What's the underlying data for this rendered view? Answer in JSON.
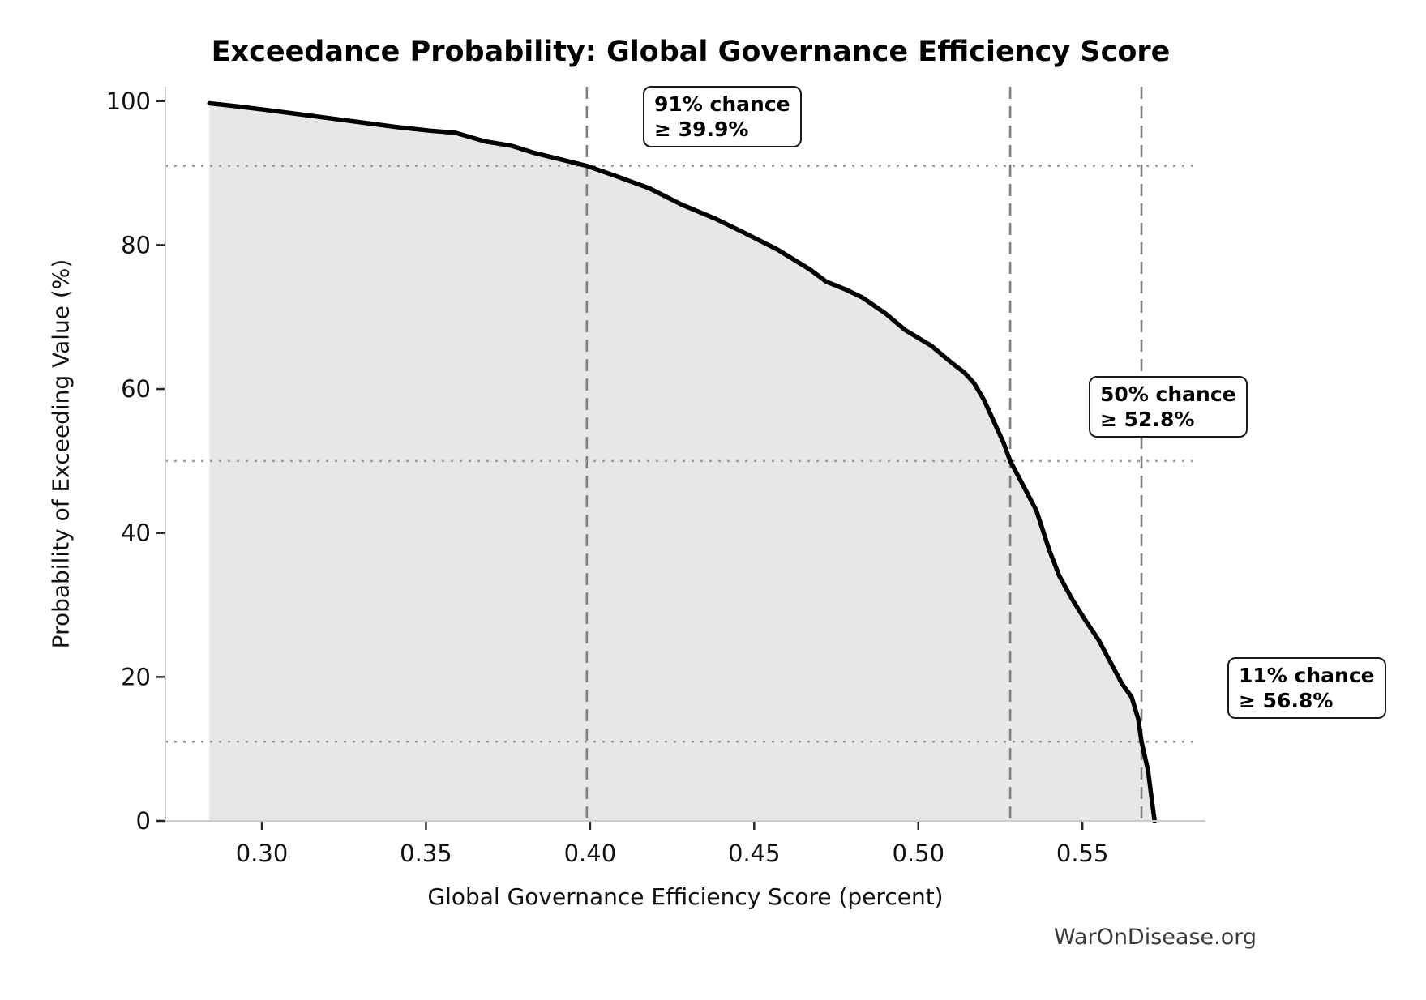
{
  "title": "Exceedance Probability: Global Governance Efficiency Score",
  "watermark": "WarOnDisease.org",
  "chart_data": {
    "type": "area",
    "title": "Exceedance Probability: Global Governance Efficiency Score",
    "xlabel": "Global Governance Efficiency Score (percent)",
    "ylabel": "Probability of Exceeding Value (%)",
    "xlim": [
      0.2706,
      0.5875
    ],
    "ylim": [
      0,
      102
    ],
    "grid": "dotted horizontal lines at marker probabilities; dashed vertical lines at marker scores",
    "legend_position": "none",
    "xticks": {
      "values": [
        0.3,
        0.35,
        0.4,
        0.45,
        0.5,
        0.55
      ],
      "labels": [
        "0.30",
        "0.35",
        "0.40",
        "0.45",
        "0.50",
        "0.55"
      ]
    },
    "yticks": {
      "values": [
        0,
        20,
        40,
        60,
        80,
        100
      ],
      "labels": [
        "0",
        "20",
        "40",
        "60",
        "80",
        "100"
      ]
    },
    "curve": {
      "x": [
        0.284,
        0.292,
        0.301,
        0.311,
        0.321,
        0.331,
        0.341,
        0.351,
        0.359,
        0.368,
        0.376,
        0.383,
        0.391,
        0.399,
        0.409,
        0.418,
        0.428,
        0.438,
        0.447,
        0.457,
        0.467,
        0.472,
        0.478,
        0.483,
        0.49,
        0.496,
        0.504,
        0.51,
        0.514,
        0.517,
        0.52,
        0.523,
        0.526,
        0.528,
        0.533,
        0.536,
        0.54,
        0.543,
        0.547,
        0.551,
        0.555,
        0.558,
        0.562,
        0.565,
        0.567,
        0.568,
        0.57,
        0.571,
        0.572
      ],
      "y": [
        99.7,
        99.3,
        98.8,
        98.2,
        97.6,
        97.0,
        96.4,
        95.9,
        95.6,
        94.4,
        93.8,
        92.8,
        91.9,
        91.0,
        89.4,
        87.9,
        85.6,
        83.7,
        81.7,
        79.4,
        76.6,
        74.9,
        73.8,
        72.7,
        70.5,
        68.2,
        66.0,
        63.7,
        62.3,
        60.8,
        58.5,
        55.5,
        52.5,
        50.0,
        45.7,
        43.1,
        37.5,
        34.0,
        30.7,
        27.8,
        25.1,
        22.5,
        19.1,
        17.2,
        14.2,
        11.0,
        7.0,
        3.4,
        0.0
      ]
    },
    "markers": [
      {
        "probability_pct": 91,
        "score": 0.399,
        "line1": "91% chance",
        "line2": "≥ 39.9%"
      },
      {
        "probability_pct": 50,
        "score": 0.528,
        "line1": "50% chance",
        "line2": "≥ 52.8%"
      },
      {
        "probability_pct": 11,
        "score": 0.568,
        "line1": "11% chance",
        "line2": "≥ 56.8%"
      }
    ],
    "colors": {
      "curve": "#000000",
      "fill": "#e7e7e7",
      "dashed_line": "#7f7f7f",
      "dotted_line": "#9e9e9e",
      "spine": "#cccccc",
      "tick": "#262626",
      "tick_label": "#111111",
      "background": "#ffffff",
      "annotation_border": "#1a1a1a",
      "watermark": "#3a3a3a"
    }
  }
}
